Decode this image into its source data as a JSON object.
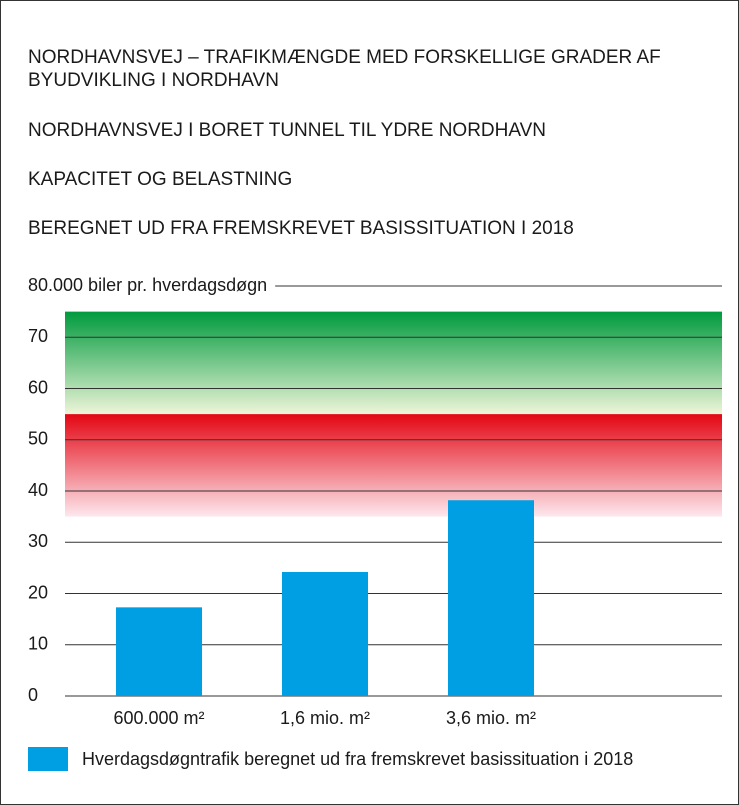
{
  "chart_data": {
    "type": "bar",
    "title": [
      "NORDHAVNSVEJ – TRAFIKMÆNGDE MED FORSKELLIGE GRADER AF",
      "BYUDVIKLING I NORDHAVN"
    ],
    "subtitles": [
      "NORDHAVNSVEJ I BORET TUNNEL TIL YDRE NORDHAVN",
      "KAPACITET OG BELASTNING",
      "BEREGNET UD FRA FREMSKREVET BASISSITUATION I 2018"
    ],
    "categories": [
      "600.000 m²",
      "1,6 mio. m²",
      "3,6 mio. m²"
    ],
    "series": [
      {
        "name": "Hverdagsdøgntrafik beregnet ud fra fremskrevet basissituation i 2018",
        "color": "#009fe3",
        "values": [
          17.3,
          24.2,
          38.2
        ]
      }
    ],
    "ylim": [
      0,
      80
    ],
    "yticks": [
      0,
      10,
      20,
      30,
      40,
      50,
      60,
      70,
      {
        "value": 80,
        "label": "80.000 biler pr. hverdagsdøgn"
      }
    ],
    "grid": true,
    "bands": [
      {
        "from": 55,
        "to": 75,
        "color": "#009a3e"
      },
      {
        "from": 35,
        "to": 55,
        "color": "#e30613"
      }
    ]
  }
}
